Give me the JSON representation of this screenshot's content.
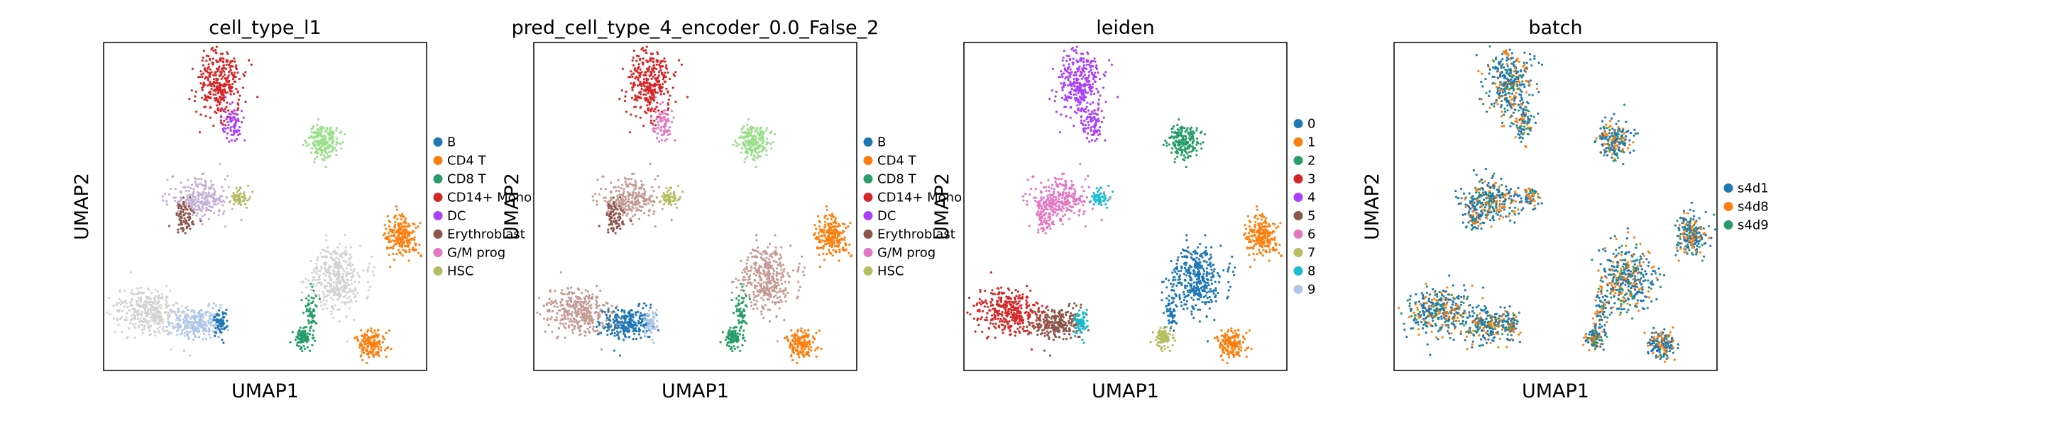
{
  "chart_data": [
    {
      "type": "scatter",
      "title": "cell_type_l1",
      "xlabel": "UMAP1",
      "ylabel": "UMAP2",
      "ticks": "none",
      "grid": false,
      "legend": {
        "placement": "right",
        "entries": [
          {
            "label": "B",
            "color": "#1f77b4"
          },
          {
            "label": "CD4 T",
            "color": "#ff7f0e"
          },
          {
            "label": "CD8 T",
            "color": "#279e68"
          },
          {
            "label": "CD14+ Mono",
            "color": "#d62728"
          },
          {
            "label": "DC",
            "color": "#aa40fc"
          },
          {
            "label": "Erythroblast",
            "color": "#8c564b"
          },
          {
            "label": "G/M prog",
            "color": "#e377c2"
          },
          {
            "label": "HSC",
            "color": "#b5bd61"
          }
        ]
      },
      "clusters": [
        {
          "name": "top-arm",
          "color": "#d62728"
        },
        {
          "name": "top-arm-tail",
          "color": "#aa40fc"
        },
        {
          "name": "upper-right-blob",
          "color": "#98df8a"
        },
        {
          "name": "mid-arc",
          "color": "#c5b0d5"
        },
        {
          "name": "mid-arc-lower",
          "color": "#8c564b"
        },
        {
          "name": "mid-arc-end",
          "color": "#b5bd61"
        },
        {
          "name": "right-small-blob",
          "color": "#ff7f0e"
        },
        {
          "name": "center-right-mass",
          "color": "#d3d3d3"
        },
        {
          "name": "center-right-stem",
          "color": "#279e68"
        },
        {
          "name": "bottom-arc",
          "color": "#d3d3d3"
        },
        {
          "name": "bottom-arc-end",
          "color": "#aec7e8"
        },
        {
          "name": "bottom-arc-tip",
          "color": "#1f77b4"
        },
        {
          "name": "bottom-center-blob",
          "color": "#279e68"
        },
        {
          "name": "bottom-right-blob",
          "color": "#ff7f0e"
        }
      ]
    },
    {
      "type": "scatter",
      "title": "pred_cell_type_4_encoder_0.0_False_2",
      "xlabel": "UMAP1",
      "ylabel": "UMAP2",
      "ticks": "none",
      "grid": false,
      "legend": {
        "placement": "right",
        "entries": [
          {
            "label": "B",
            "color": "#1f77b4"
          },
          {
            "label": "CD4 T",
            "color": "#ff7f0e"
          },
          {
            "label": "CD8 T",
            "color": "#279e68"
          },
          {
            "label": "CD14+ Mono",
            "color": "#d62728"
          },
          {
            "label": "DC",
            "color": "#aa40fc"
          },
          {
            "label": "Erythroblast",
            "color": "#8c564b"
          },
          {
            "label": "G/M prog",
            "color": "#e377c2"
          },
          {
            "label": "HSC",
            "color": "#b5bd61"
          }
        ]
      },
      "clusters": [
        {
          "name": "top-arm",
          "color": "#d62728"
        },
        {
          "name": "top-arm-tail",
          "color": "#e377c2"
        },
        {
          "name": "upper-right-blob",
          "color": "#98df8a"
        },
        {
          "name": "mid-arc",
          "color": "#c49c94"
        },
        {
          "name": "mid-arc-lower",
          "color": "#8c564b"
        },
        {
          "name": "mid-arc-end",
          "color": "#b5bd61"
        },
        {
          "name": "right-small-blob",
          "color": "#ff7f0e"
        },
        {
          "name": "center-right-mass",
          "color": "#c49c94"
        },
        {
          "name": "center-right-stem",
          "color": "#279e68"
        },
        {
          "name": "bottom-arc",
          "color": "#c49c94"
        },
        {
          "name": "bottom-arc-end",
          "color": "#1f77b4"
        },
        {
          "name": "bottom-arc-tip",
          "color": "#aec7e8"
        },
        {
          "name": "bottom-center-blob",
          "color": "#279e68"
        },
        {
          "name": "bottom-right-blob",
          "color": "#ff7f0e"
        }
      ]
    },
    {
      "type": "scatter",
      "title": "leiden",
      "xlabel": "UMAP1",
      "ylabel": "UMAP2",
      "ticks": "none",
      "grid": false,
      "legend": {
        "placement": "right",
        "entries": [
          {
            "label": "0",
            "color": "#1f77b4"
          },
          {
            "label": "1",
            "color": "#ff7f0e"
          },
          {
            "label": "2",
            "color": "#279e68"
          },
          {
            "label": "3",
            "color": "#d62728"
          },
          {
            "label": "4",
            "color": "#aa40fc"
          },
          {
            "label": "5",
            "color": "#8c564b"
          },
          {
            "label": "6",
            "color": "#e377c2"
          },
          {
            "label": "7",
            "color": "#b5bd61"
          },
          {
            "label": "8",
            "color": "#17becf"
          },
          {
            "label": "9",
            "color": "#aec7e8"
          }
        ]
      },
      "clusters": [
        {
          "name": "top-arm",
          "color": "#aa40fc"
        },
        {
          "name": "top-arm-tail",
          "color": "#aa40fc"
        },
        {
          "name": "upper-right-blob",
          "color": "#279e68"
        },
        {
          "name": "mid-arc",
          "color": "#e377c2"
        },
        {
          "name": "mid-arc-lower",
          "color": "#e377c2"
        },
        {
          "name": "mid-arc-end",
          "color": "#17becf"
        },
        {
          "name": "right-small-blob",
          "color": "#ff7f0e"
        },
        {
          "name": "center-right-mass",
          "color": "#1f77b4"
        },
        {
          "name": "center-right-stem",
          "color": "#1f77b4"
        },
        {
          "name": "bottom-arc",
          "color": "#d62728"
        },
        {
          "name": "bottom-arc-end",
          "color": "#8c564b"
        },
        {
          "name": "bottom-arc-tip",
          "color": "#17becf"
        },
        {
          "name": "bottom-center-blob",
          "color": "#b5bd61"
        },
        {
          "name": "bottom-right-blob",
          "color": "#ff7f0e"
        }
      ]
    },
    {
      "type": "scatter",
      "title": "batch",
      "xlabel": "UMAP1",
      "ylabel": "UMAP2",
      "ticks": "none",
      "grid": false,
      "legend": {
        "placement": "right",
        "entries": [
          {
            "label": "s4d1",
            "color": "#1f77b4"
          },
          {
            "label": "s4d8",
            "color": "#ff7f0e"
          },
          {
            "label": "s4d9",
            "color": "#279e68"
          }
        ]
      },
      "clusters": [
        {
          "name": "top-arm",
          "color": "#1f77b4"
        },
        {
          "name": "top-arm-tail",
          "color": "#1f77b4"
        },
        {
          "name": "upper-right-blob",
          "color": "#1f77b4"
        },
        {
          "name": "mid-arc",
          "color": "#1f77b4"
        },
        {
          "name": "mid-arc-lower",
          "color": "#1f77b4"
        },
        {
          "name": "mid-arc-end",
          "color": "#1f77b4"
        },
        {
          "name": "right-small-blob",
          "color": "#1f77b4"
        },
        {
          "name": "center-right-mass",
          "color": "#1f77b4"
        },
        {
          "name": "center-right-stem",
          "color": "#1f77b4"
        },
        {
          "name": "bottom-arc",
          "color": "#1f77b4"
        },
        {
          "name": "bottom-arc-end",
          "color": "#1f77b4"
        },
        {
          "name": "bottom-arc-tip",
          "color": "#1f77b4"
        },
        {
          "name": "bottom-center-blob",
          "color": "#1f77b4"
        },
        {
          "name": "bottom-right-blob",
          "color": "#1f77b4"
        }
      ],
      "mixed_colors": [
        "#1f77b4",
        "#ff7f0e",
        "#279e68"
      ]
    }
  ]
}
